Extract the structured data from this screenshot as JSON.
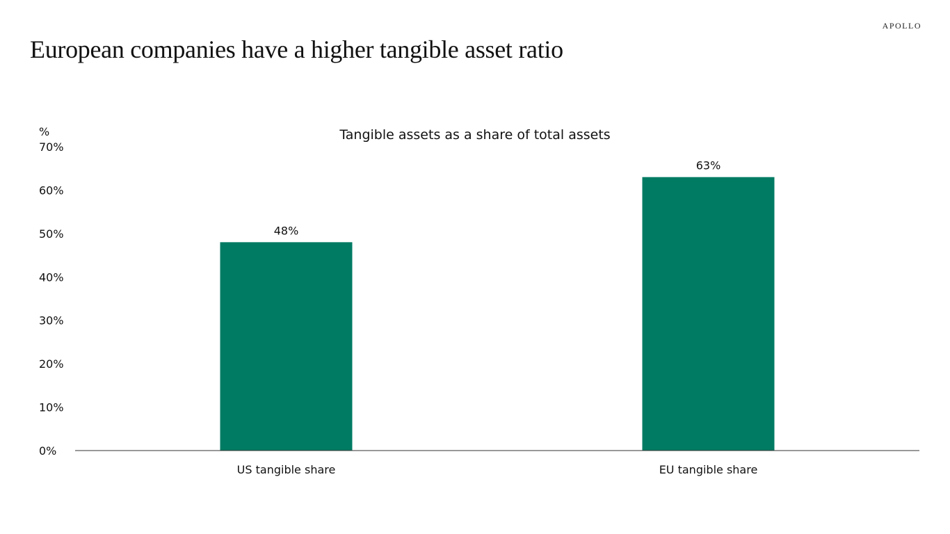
{
  "header": {
    "title": "European companies have a higher tangible asset ratio",
    "brand": "APOLLO"
  },
  "chart_data": {
    "type": "bar",
    "title": "Tangible assets as a share of total assets",
    "ylabel": "%",
    "xlabel": "",
    "categories": [
      "US tangible share",
      "EU tangible share"
    ],
    "values": [
      48,
      63
    ],
    "data_labels": [
      "48%",
      "63%"
    ],
    "ylim": [
      0,
      70
    ],
    "yticks": [
      0,
      10,
      20,
      30,
      40,
      50,
      60,
      70
    ],
    "ytick_labels": [
      "0%",
      "10%",
      "20%",
      "30%",
      "40%",
      "50%",
      "60%",
      "70%"
    ],
    "grid": false,
    "legend": "none",
    "bar_color": "#007B63"
  }
}
